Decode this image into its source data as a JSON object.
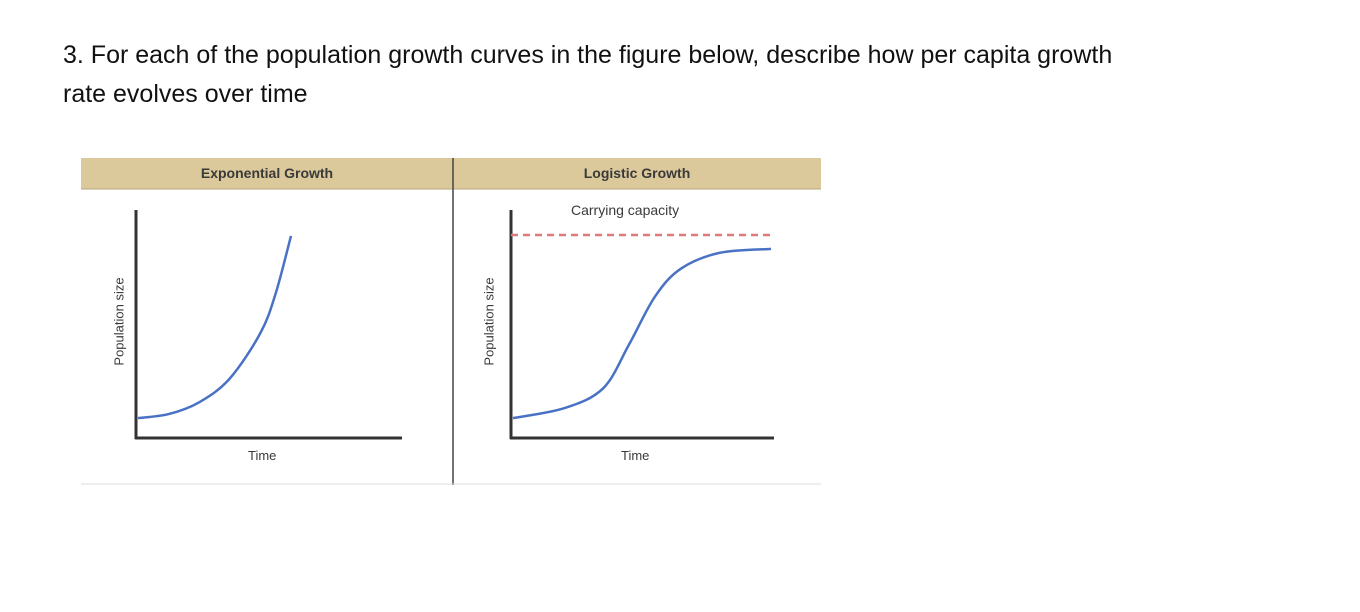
{
  "question": {
    "line1": "3. For each of the population growth curves in the figure below, describe how per capita growth",
    "line2": "rate  evolves over time"
  },
  "figure": {
    "header_color": "#dcc99b",
    "curve_color": "#4a72c4",
    "capacity_line_color": "#e07a7a"
  },
  "chart_data": [
    {
      "type": "line",
      "title": "Exponential Growth",
      "xlabel": "Time",
      "ylabel": "Population size",
      "series": [
        {
          "shape": "exponential",
          "x": [
            0,
            0.2,
            0.4,
            0.6,
            0.8,
            0.9,
            1.0
          ],
          "y": [
            0.05,
            0.07,
            0.13,
            0.25,
            0.48,
            0.68,
            0.97
          ]
        }
      ],
      "grid": false
    },
    {
      "type": "line",
      "title": "Logistic Growth",
      "xlabel": "Time",
      "ylabel": "Population size",
      "annotation": "Carrying capacity",
      "series": [
        {
          "shape": "logistic",
          "x": [
            0,
            0.2,
            0.35,
            0.45,
            0.55,
            0.65,
            0.8,
            1.0
          ],
          "y": [
            0.05,
            0.1,
            0.2,
            0.42,
            0.66,
            0.8,
            0.88,
            0.9
          ]
        }
      ],
      "capacity": 0.97,
      "grid": false
    }
  ]
}
